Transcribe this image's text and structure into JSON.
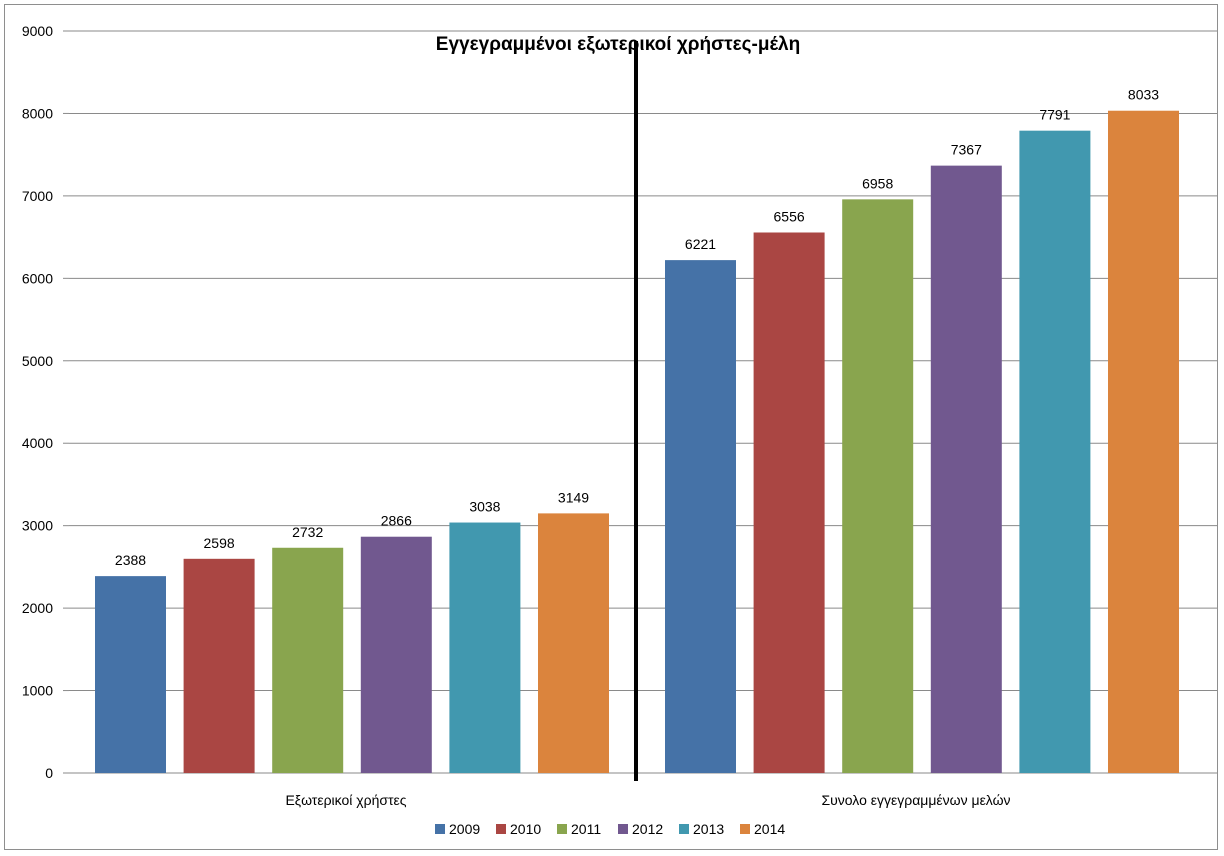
{
  "chart_data": {
    "type": "bar",
    "title": "Εγγεγραμμένοι εξωτερικοί χρήστες-μέλη",
    "xlabel": "",
    "ylabel": "",
    "ylim": [
      0,
      9000
    ],
    "yticks": [
      0,
      1000,
      2000,
      3000,
      4000,
      5000,
      6000,
      7000,
      8000,
      9000
    ],
    "grid": true,
    "legend_position": "bottom",
    "categories": [
      "Εξωτερικοί χρήστες",
      "Συνολο εγγεγραμμένων μελών"
    ],
    "series": [
      {
        "name": "2009",
        "color": "#4572A7",
        "values": [
          2388,
          6221
        ]
      },
      {
        "name": "2010",
        "color": "#AA4643",
        "values": [
          2598,
          6556
        ]
      },
      {
        "name": "2011",
        "color": "#89A54E",
        "values": [
          2732,
          6958
        ]
      },
      {
        "name": "2012",
        "color": "#71588F",
        "values": [
          2866,
          7367
        ]
      },
      {
        "name": "2013",
        "color": "#4198AF",
        "values": [
          3038,
          7791
        ]
      },
      {
        "name": "2014",
        "color": "#DB843D",
        "values": [
          3149,
          8033
        ]
      }
    ]
  }
}
